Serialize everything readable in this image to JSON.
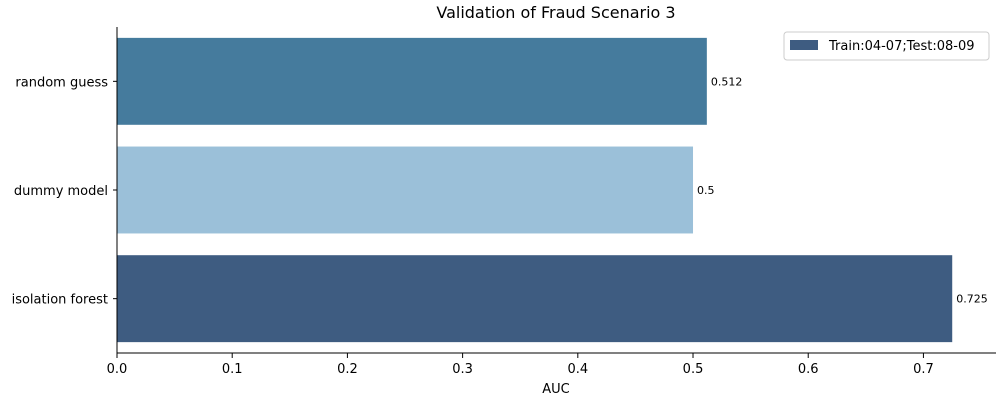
{
  "chart_data": {
    "type": "bar",
    "orientation": "horizontal",
    "title": "Validation of Fraud Scenario 3",
    "xlabel": "AUC",
    "ylabel": "",
    "xlim": [
      0,
      0.763
    ],
    "xticks": [
      0.0,
      0.1,
      0.2,
      0.3,
      0.4,
      0.5,
      0.6,
      0.7
    ],
    "xtick_labels": [
      "0.0",
      "0.1",
      "0.2",
      "0.3",
      "0.4",
      "0.5",
      "0.6",
      "0.7"
    ],
    "categories": [
      "random guess",
      "dummy model",
      "isolation forest"
    ],
    "values": [
      0.512,
      0.5,
      0.725
    ],
    "value_labels": [
      "0.512",
      "0.5",
      "0.725"
    ],
    "bar_colors": [
      "#457b9d",
      "#9bc0d9",
      "#3e5c81"
    ],
    "grid": false,
    "legend": {
      "position": "top-right",
      "entries": [
        {
          "label": "Train:04-07;Test:08-09",
          "color": "#3e5c81"
        }
      ]
    }
  }
}
